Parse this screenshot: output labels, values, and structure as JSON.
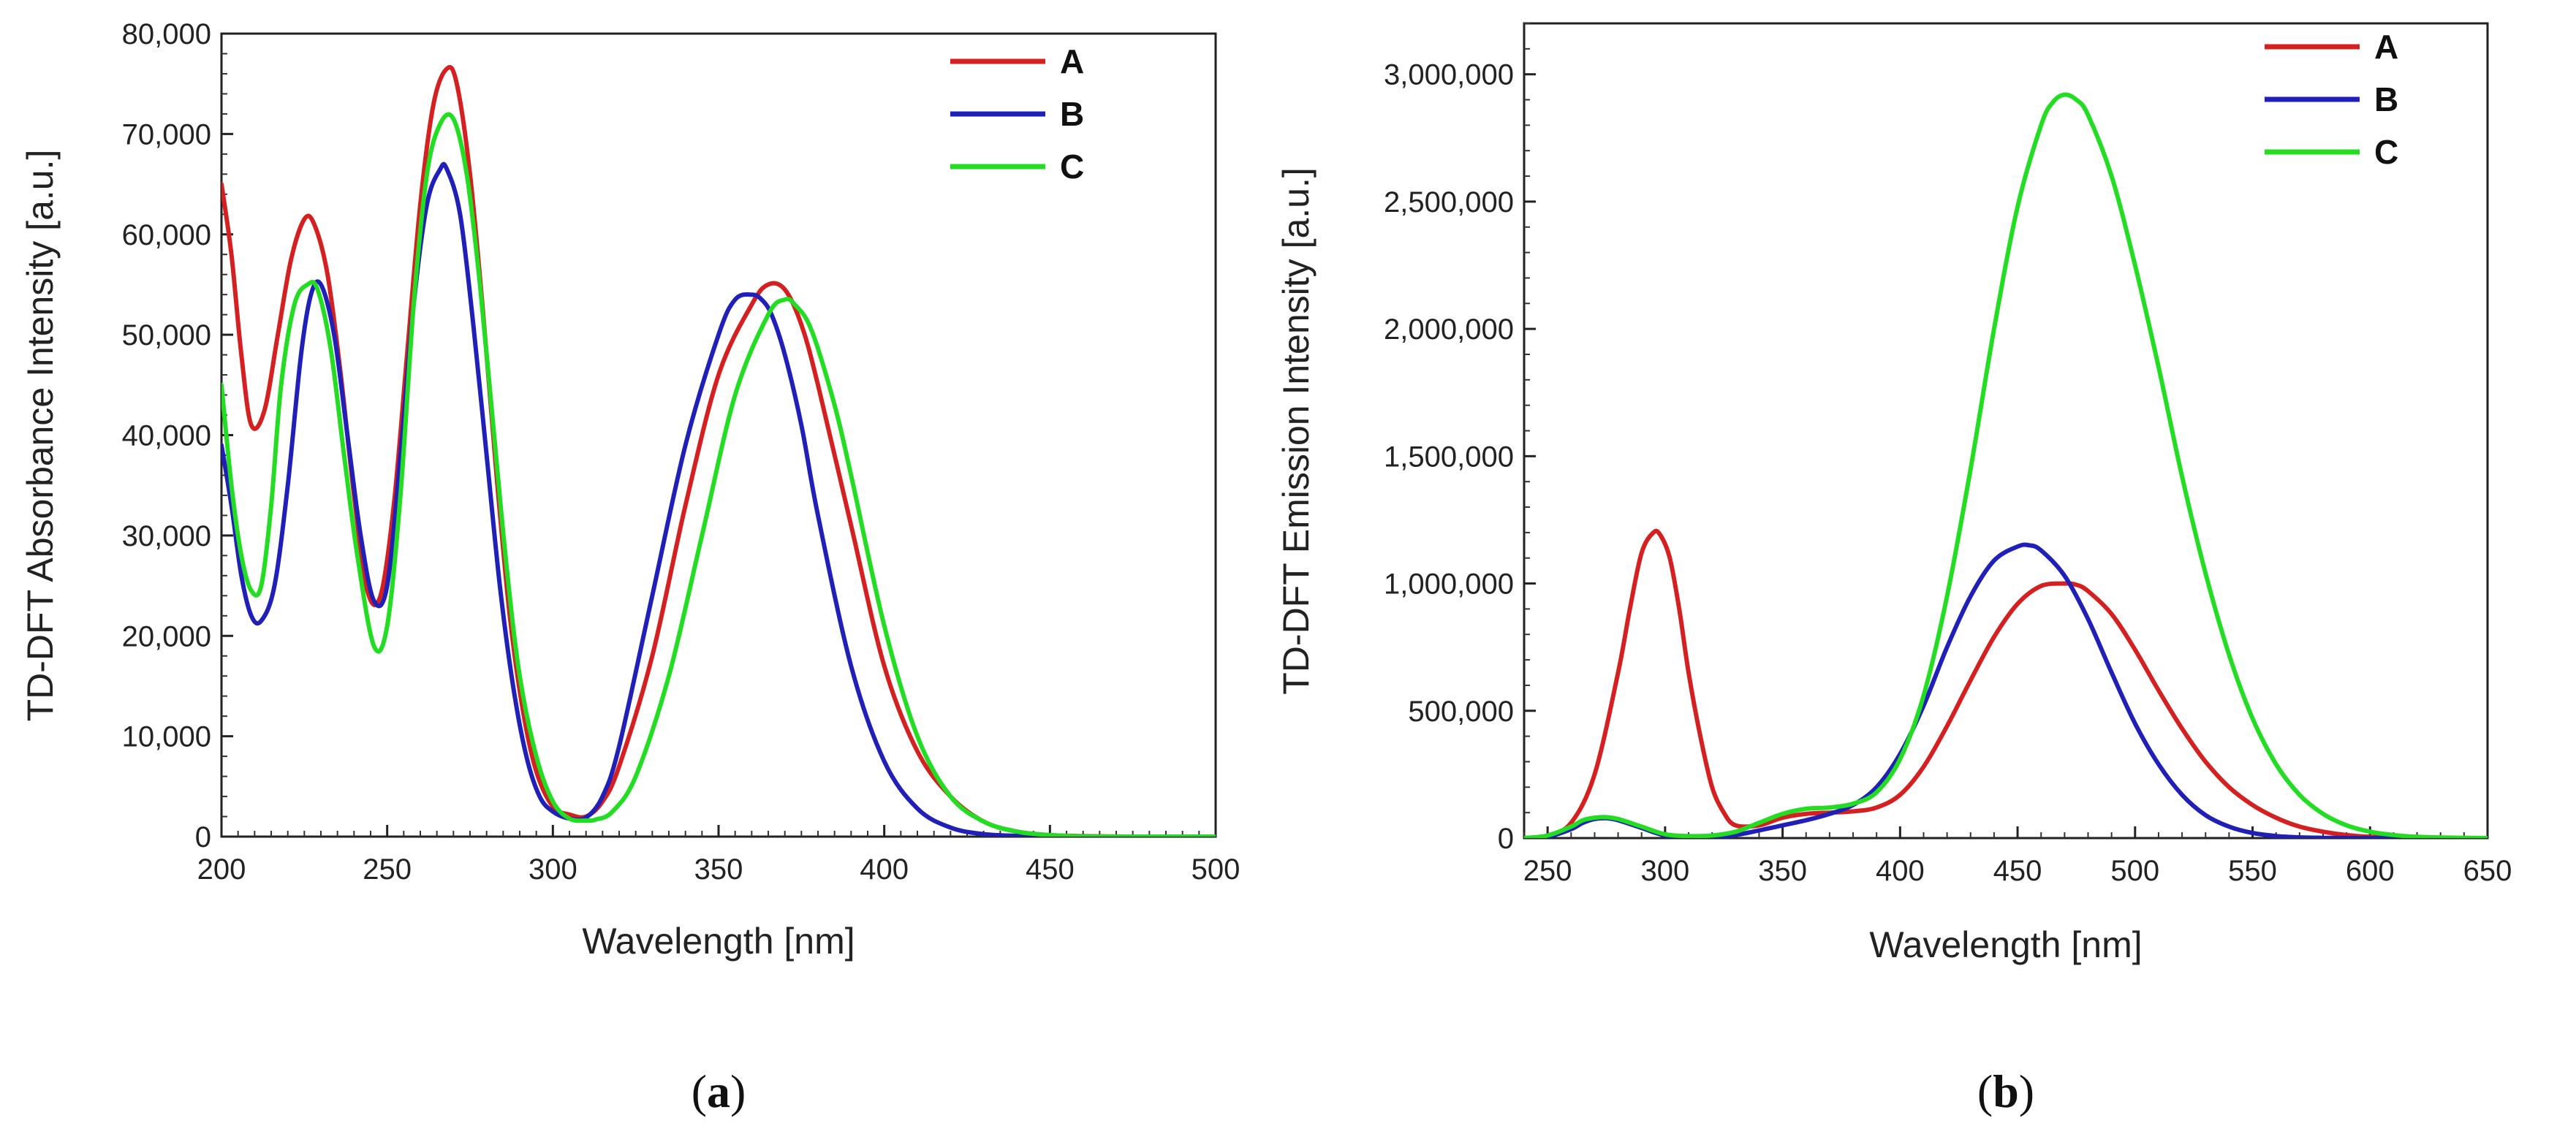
{
  "colors": {
    "A": "#d42020",
    "B": "#2020b8",
    "C": "#22dd22"
  },
  "chart_data": [
    {
      "type": "line",
      "caption": [
        "(",
        "a",
        ")"
      ],
      "xlabel": "Wavelength [nm]",
      "ylabel": "TD-DFT Absorbance Intensity [a.u.]",
      "xlim": [
        200,
        500
      ],
      "ylim": [
        0,
        80000
      ],
      "xticks": [
        200,
        250,
        300,
        350,
        400,
        450,
        500
      ],
      "yticks": [
        0,
        10000,
        20000,
        30000,
        40000,
        50000,
        60000,
        70000,
        80000
      ],
      "xtick_labels": [
        "200",
        "250",
        "300",
        "350",
        "400",
        "450",
        "500"
      ],
      "ytick_labels": [
        "0",
        "10,000",
        "20,000",
        "30,000",
        "40,000",
        "50,000",
        "60,000",
        "70,000",
        "80,000"
      ],
      "legend": [
        "A",
        "B",
        "C"
      ],
      "legend_position": "top-right",
      "series": [
        {
          "name": "A",
          "x": [
            200,
            203,
            206,
            209,
            213,
            217,
            221,
            225,
            228,
            232,
            236,
            240,
            244,
            248,
            252,
            256,
            260,
            264,
            268,
            271,
            275,
            279,
            283,
            287,
            291,
            295,
            300,
            305,
            310,
            315,
            320,
            330,
            340,
            350,
            360,
            365,
            370,
            375,
            380,
            390,
            400,
            410,
            420,
            430,
            440,
            450,
            460,
            470,
            480,
            490,
            500
          ],
          "y": [
            65000,
            58000,
            48000,
            41000,
            42500,
            50000,
            57500,
            61500,
            61000,
            56000,
            46000,
            34000,
            24500,
            24000,
            33000,
            48000,
            63000,
            73000,
            76500,
            75000,
            66000,
            52000,
            36000,
            22000,
            12500,
            6500,
            3000,
            2200,
            2000,
            3500,
            7000,
            18000,
            33000,
            46000,
            53000,
            55000,
            54500,
            51000,
            45000,
            31000,
            17000,
            8500,
            4000,
            1500,
            500,
            150,
            50,
            10,
            0,
            0,
            0
          ]
        },
        {
          "name": "B",
          "x": [
            200,
            203,
            206,
            209,
            212,
            216,
            220,
            224,
            227,
            230,
            234,
            238,
            242,
            246,
            250,
            254,
            258,
            262,
            266,
            268,
            272,
            276,
            280,
            284,
            288,
            292,
            296,
            300,
            305,
            310,
            315,
            320,
            330,
            340,
            350,
            355,
            360,
            363,
            366,
            370,
            375,
            380,
            390,
            400,
            410,
            420,
            430,
            440,
            450,
            460,
            470,
            480,
            500
          ],
          "y": [
            39000,
            33000,
            26000,
            22000,
            21500,
            25000,
            35000,
            48000,
            54000,
            55000,
            50000,
            40000,
            30000,
            23500,
            25000,
            38000,
            53000,
            63000,
            66500,
            66500,
            62000,
            51000,
            38000,
            25000,
            15000,
            8000,
            4000,
            2500,
            1800,
            1900,
            4000,
            9000,
            24000,
            39000,
            50000,
            53500,
            54000,
            53500,
            52000,
            48000,
            41000,
            32000,
            17000,
            7500,
            2800,
            900,
            250,
            80,
            20,
            0,
            0,
            0,
            0
          ]
        },
        {
          "name": "C",
          "x": [
            200,
            203,
            206,
            209,
            212,
            215,
            218,
            222,
            226,
            229,
            233,
            237,
            241,
            246,
            250,
            254,
            258,
            262,
            266,
            270,
            274,
            278,
            282,
            286,
            290,
            295,
            300,
            305,
            310,
            313,
            318,
            325,
            335,
            345,
            355,
            365,
            370,
            373,
            378,
            385,
            390,
            400,
            410,
            420,
            430,
            440,
            450,
            460,
            470,
            480,
            500
          ],
          "y": [
            45000,
            35000,
            28000,
            24500,
            25000,
            33000,
            45000,
            53000,
            55000,
            54500,
            48500,
            38000,
            28000,
            19000,
            21000,
            34000,
            53000,
            66000,
            71000,
            71500,
            66000,
            55000,
            41000,
            27000,
            16000,
            8000,
            3500,
            1800,
            1600,
            1700,
            2500,
            6000,
            16000,
            30000,
            44000,
            52000,
            53500,
            53000,
            50500,
            43000,
            36000,
            21000,
            10000,
            4000,
            1500,
            500,
            150,
            40,
            10,
            0,
            0
          ]
        }
      ]
    },
    {
      "type": "line",
      "caption": [
        "(",
        "b",
        ")"
      ],
      "xlabel": "Wavelength [nm]",
      "ylabel": "TD-DFT Emission Intensity [a.u.]",
      "xlim": [
        240,
        650
      ],
      "ylim": [
        0,
        3200000
      ],
      "xticks": [
        250,
        300,
        350,
        400,
        450,
        500,
        550,
        600,
        650
      ],
      "yticks": [
        0,
        500000,
        1000000,
        1500000,
        2000000,
        2500000,
        3000000
      ],
      "xtick_labels": [
        "250",
        "300",
        "350",
        "400",
        "450",
        "500",
        "550",
        "600",
        "650"
      ],
      "ytick_labels": [
        "0",
        "500,000",
        "1,000,000",
        "1,500,000",
        "2,000,000",
        "2,500,000",
        "3,000,000"
      ],
      "legend": [
        "A",
        "B",
        "C"
      ],
      "legend_position": "top-right",
      "series": [
        {
          "name": "A",
          "x": [
            240,
            250,
            260,
            270,
            280,
            285,
            290,
            295,
            298,
            302,
            306,
            310,
            315,
            320,
            325,
            330,
            340,
            350,
            360,
            370,
            380,
            390,
            400,
            410,
            420,
            430,
            440,
            450,
            460,
            470,
            475,
            480,
            490,
            500,
            510,
            520,
            530,
            540,
            550,
            560,
            570,
            580,
            590,
            600,
            610,
            620,
            630,
            650
          ],
          "y": [
            0,
            10000,
            60000,
            250000,
            650000,
            900000,
            1120000,
            1200000,
            1190000,
            1100000,
            900000,
            650000,
            400000,
            200000,
            100000,
            50000,
            50000,
            80000,
            95000,
            100000,
            105000,
            120000,
            170000,
            280000,
            440000,
            620000,
            790000,
            920000,
            990000,
            1000000,
            995000,
            970000,
            880000,
            740000,
            580000,
            430000,
            300000,
            200000,
            130000,
            80000,
            45000,
            25000,
            12000,
            5000,
            2000,
            800,
            300,
            0
          ]
        },
        {
          "name": "B",
          "x": [
            240,
            250,
            260,
            265,
            270,
            275,
            280,
            290,
            300,
            310,
            320,
            330,
            340,
            350,
            360,
            370,
            380,
            390,
            400,
            410,
            420,
            430,
            440,
            450,
            455,
            460,
            470,
            480,
            490,
            500,
            510,
            520,
            530,
            540,
            550,
            560,
            570,
            580,
            590,
            600,
            650
          ],
          "y": [
            0,
            5000,
            35000,
            60000,
            75000,
            78000,
            70000,
            40000,
            10000,
            5000,
            5000,
            12000,
            30000,
            50000,
            70000,
            95000,
            130000,
            200000,
            330000,
            520000,
            750000,
            950000,
            1090000,
            1145000,
            1150000,
            1130000,
            1030000,
            860000,
            650000,
            450000,
            290000,
            170000,
            90000,
            45000,
            20000,
            8000,
            3000,
            1000,
            300,
            0,
            0
          ]
        },
        {
          "name": "C",
          "x": [
            240,
            250,
            260,
            265,
            270,
            275,
            280,
            290,
            300,
            310,
            320,
            330,
            340,
            350,
            360,
            370,
            380,
            390,
            400,
            410,
            420,
            430,
            440,
            450,
            460,
            465,
            470,
            475,
            480,
            490,
            500,
            510,
            520,
            530,
            540,
            550,
            560,
            570,
            580,
            590,
            600,
            610,
            620,
            630,
            650
          ],
          "y": [
            0,
            10000,
            45000,
            70000,
            80000,
            82000,
            75000,
            45000,
            15000,
            8000,
            10000,
            25000,
            60000,
            95000,
            115000,
            120000,
            135000,
            180000,
            310000,
            560000,
            950000,
            1450000,
            2000000,
            2480000,
            2800000,
            2890000,
            2920000,
            2900000,
            2840000,
            2600000,
            2250000,
            1850000,
            1420000,
            1040000,
            720000,
            470000,
            290000,
            170000,
            95000,
            50000,
            25000,
            12000,
            5000,
            2000,
            0
          ]
        }
      ]
    }
  ]
}
